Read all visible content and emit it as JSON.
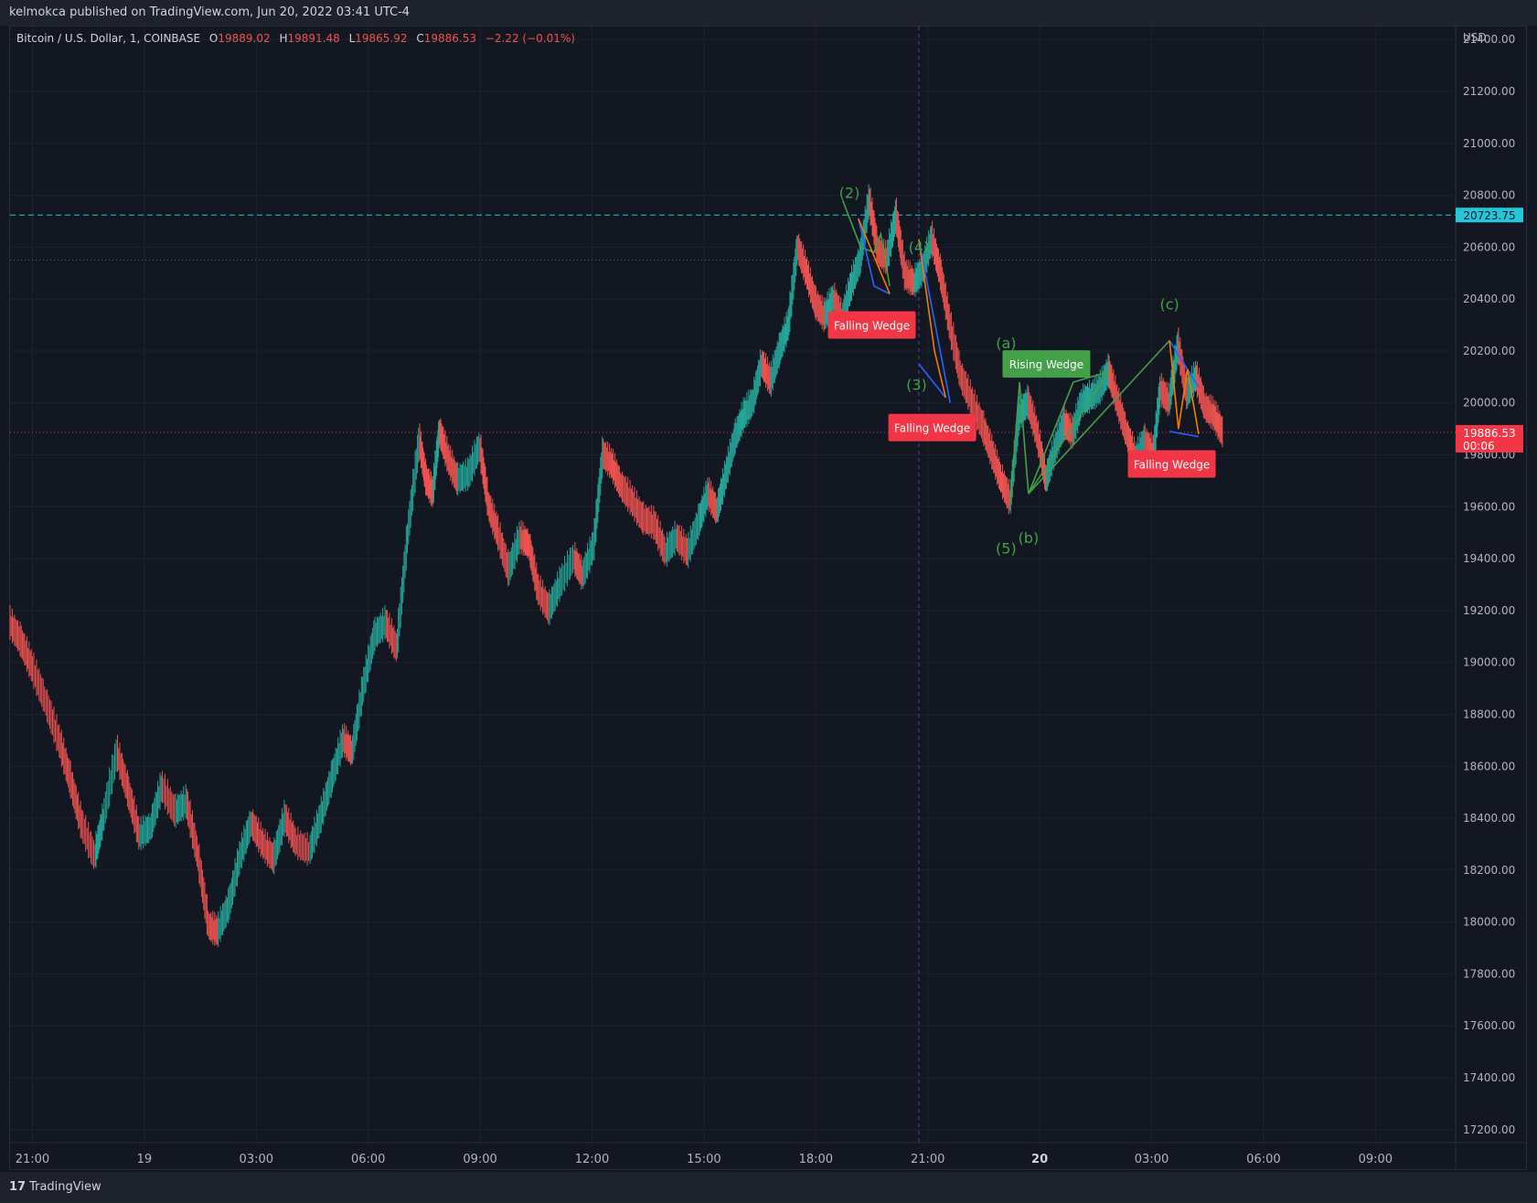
{
  "header": {
    "published_text": "kelmokca published on TradingView.com, Jun 20, 2022 03:41 UTC-4"
  },
  "legend": {
    "symbol": "Bitcoin / U.S. Dollar, 1, COINBASE",
    "o_label": "O",
    "o_value": "19889.02",
    "h_label": "H",
    "h_value": "19891.48",
    "l_label": "L",
    "l_value": "19865.92",
    "c_label": "C",
    "c_value": "19886.53",
    "change": "−2.22 (−0.01%)"
  },
  "footer": {
    "logo": "17",
    "brand": "TradingView"
  },
  "chart_data": {
    "type": "candlestick",
    "currency_label": "USD",
    "ylim": [
      17150,
      21450
    ],
    "y_ticks": [
      "21400.00",
      "21200.00",
      "21000.00",
      "20800.00",
      "20600.00",
      "20400.00",
      "20200.00",
      "20000.00",
      "19800.00",
      "19600.00",
      "19400.00",
      "19200.00",
      "19000.00",
      "18800.00",
      "18600.00",
      "18400.00",
      "18200.00",
      "18000.00",
      "17800.00",
      "17600.00",
      "17400.00",
      "17200.00"
    ],
    "x_ticks": [
      {
        "t": 0,
        "label": "21:00",
        "bold": false
      },
      {
        "t": 5,
        "label": "19",
        "bold": false
      },
      {
        "t": 10,
        "label": "03:00",
        "bold": false
      },
      {
        "t": 15,
        "label": "06:00",
        "bold": false
      },
      {
        "t": 20,
        "label": "09:00",
        "bold": false
      },
      {
        "t": 25,
        "label": "12:00",
        "bold": false
      },
      {
        "t": 30,
        "label": "15:00",
        "bold": false
      },
      {
        "t": 35,
        "label": "18:00",
        "bold": false
      },
      {
        "t": 40,
        "label": "21:00",
        "bold": false
      },
      {
        "t": 45,
        "label": "20",
        "bold": true
      },
      {
        "t": 50,
        "label": "03:00",
        "bold": false
      },
      {
        "t": 55,
        "label": "06:00",
        "bold": false
      },
      {
        "t": 60,
        "label": "09:00",
        "bold": false
      }
    ],
    "xlim": [
      -1,
      63.5
    ],
    "price_path": [
      [
        -1,
        19150
      ],
      [
        -0.5,
        19080
      ],
      [
        0,
        18980
      ],
      [
        0.6,
        18850
      ],
      [
        1.2,
        18700
      ],
      [
        1.7,
        18550
      ],
      [
        2.2,
        18380
      ],
      [
        2.8,
        18250
      ],
      [
        3.2,
        18400
      ],
      [
        3.8,
        18650
      ],
      [
        4.3,
        18500
      ],
      [
        4.8,
        18330
      ],
      [
        5.3,
        18360
      ],
      [
        5.8,
        18520
      ],
      [
        6.4,
        18420
      ],
      [
        6.9,
        18460
      ],
      [
        7.4,
        18260
      ],
      [
        7.9,
        17980
      ],
      [
        8.3,
        17960
      ],
      [
        8.8,
        18060
      ],
      [
        9.3,
        18250
      ],
      [
        9.8,
        18380
      ],
      [
        10.3,
        18300
      ],
      [
        10.8,
        18240
      ],
      [
        11.3,
        18400
      ],
      [
        11.8,
        18300
      ],
      [
        12.4,
        18270
      ],
      [
        12.9,
        18400
      ],
      [
        13.4,
        18550
      ],
      [
        13.9,
        18700
      ],
      [
        14.3,
        18650
      ],
      [
        14.8,
        18900
      ],
      [
        15.3,
        19100
      ],
      [
        15.8,
        19150
      ],
      [
        16.3,
        19050
      ],
      [
        16.8,
        19500
      ],
      [
        17.3,
        19850
      ],
      [
        17.6,
        19700
      ],
      [
        17.9,
        19650
      ],
      [
        18.2,
        19890
      ],
      [
        18.6,
        19780
      ],
      [
        19.0,
        19700
      ],
      [
        19.5,
        19720
      ],
      [
        20.0,
        19830
      ],
      [
        20.4,
        19600
      ],
      [
        20.8,
        19500
      ],
      [
        21.3,
        19350
      ],
      [
        21.8,
        19480
      ],
      [
        22.2,
        19450
      ],
      [
        22.6,
        19280
      ],
      [
        23.1,
        19200
      ],
      [
        23.6,
        19300
      ],
      [
        24.2,
        19400
      ],
      [
        24.6,
        19330
      ],
      [
        25.1,
        19450
      ],
      [
        25.5,
        19800
      ],
      [
        25.9,
        19760
      ],
      [
        26.3,
        19680
      ],
      [
        26.8,
        19620
      ],
      [
        27.3,
        19550
      ],
      [
        27.8,
        19530
      ],
      [
        28.3,
        19420
      ],
      [
        28.8,
        19480
      ],
      [
        29.3,
        19420
      ],
      [
        29.8,
        19540
      ],
      [
        30.2,
        19650
      ],
      [
        30.6,
        19580
      ],
      [
        31.0,
        19720
      ],
      [
        31.4,
        19860
      ],
      [
        31.8,
        19950
      ],
      [
        32.2,
        20000
      ],
      [
        32.6,
        20150
      ],
      [
        33.0,
        20080
      ],
      [
        33.4,
        20200
      ],
      [
        33.8,
        20300
      ],
      [
        34.2,
        20600
      ],
      [
        34.6,
        20500
      ],
      [
        35.0,
        20380
      ],
      [
        35.4,
        20330
      ],
      [
        35.8,
        20400
      ],
      [
        36.2,
        20320
      ],
      [
        36.6,
        20450
      ],
      [
        37.0,
        20550
      ],
      [
        37.4,
        20780
      ],
      [
        37.8,
        20580
      ],
      [
        38.2,
        20550
      ],
      [
        38.6,
        20720
      ],
      [
        39.0,
        20490
      ],
      [
        39.4,
        20460
      ],
      [
        39.8,
        20510
      ],
      [
        40.2,
        20630
      ],
      [
        40.6,
        20490
      ],
      [
        41.0,
        20300
      ],
      [
        41.5,
        20100
      ],
      [
        42.0,
        20000
      ],
      [
        42.5,
        19900
      ],
      [
        42.9,
        19800
      ],
      [
        43.3,
        19700
      ],
      [
        43.7,
        19620
      ],
      [
        44.1,
        19950
      ],
      [
        44.5,
        20000
      ],
      [
        44.9,
        19880
      ],
      [
        45.3,
        19700
      ],
      [
        45.7,
        19820
      ],
      [
        46.1,
        19920
      ],
      [
        46.5,
        19880
      ],
      [
        46.9,
        20000
      ],
      [
        47.3,
        20020
      ],
      [
        47.7,
        20050
      ],
      [
        48.1,
        20120
      ],
      [
        48.5,
        20000
      ],
      [
        48.9,
        19880
      ],
      [
        49.3,
        19780
      ],
      [
        49.7,
        19850
      ],
      [
        50.1,
        19800
      ],
      [
        50.4,
        20050
      ],
      [
        50.8,
        20000
      ],
      [
        51.2,
        20220
      ],
      [
        51.6,
        20030
      ],
      [
        52.0,
        20100
      ],
      [
        52.4,
        19980
      ],
      [
        52.8,
        19950
      ],
      [
        53.2,
        19880
      ]
    ],
    "horizontal_lines": [
      {
        "y": 20723.75,
        "color": "#26c6da",
        "style": "dashed",
        "label": "20723.75"
      },
      {
        "y": 20550,
        "color": "#5d606b",
        "style": "dotted",
        "label": ""
      },
      {
        "y": 19886.53,
        "color": "#f23645",
        "style": "dotted",
        "label": "19886.53"
      }
    ],
    "price_label_time": "00:06",
    "vertical_line_t": 39.6,
    "wave_labels": [
      {
        "t": 36.5,
        "y": 20790,
        "text": "(2)"
      },
      {
        "t": 39.6,
        "y": 20580,
        "text": "(4)"
      },
      {
        "t": 39.5,
        "y": 20050,
        "text": "(3)"
      },
      {
        "t": 43.5,
        "y": 20210,
        "text": "(a)"
      },
      {
        "t": 43.5,
        "y": 19420,
        "text": "(5)"
      },
      {
        "t": 44.5,
        "y": 19460,
        "text": "(b)"
      },
      {
        "t": 50.8,
        "y": 20360,
        "text": "(c)"
      }
    ],
    "pattern_tags": [
      {
        "t": 37.5,
        "y": 20300,
        "text": "Falling Wedge",
        "color": "#f23645"
      },
      {
        "t": 40.2,
        "y": 19905,
        "text": "Falling Wedge",
        "color": "#f23645"
      },
      {
        "t": 45.3,
        "y": 20150,
        "text": "Rising Wedge",
        "color": "#43a047"
      },
      {
        "t": 50.9,
        "y": 19765,
        "text": "Falling Wedge",
        "color": "#f23645"
      }
    ]
  }
}
